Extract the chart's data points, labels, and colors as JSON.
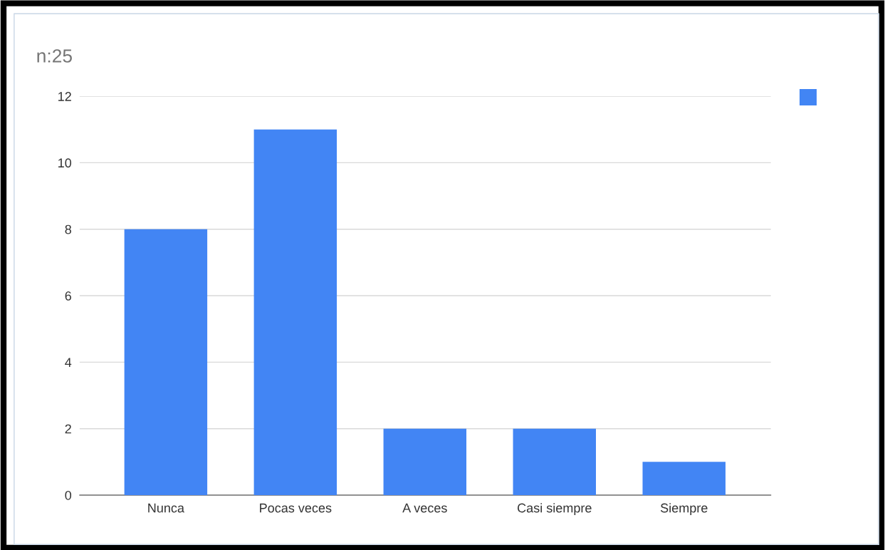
{
  "chart_data": {
    "type": "bar",
    "title": "n:25",
    "categories": [
      "Nunca",
      "Pocas veces",
      "A veces",
      "Casi siempre",
      "Siempre"
    ],
    "series": [
      {
        "color": "#4285f4",
        "values": [
          8,
          11,
          2,
          2,
          1
        ]
      }
    ],
    "ylim": [
      0,
      12
    ],
    "yticks": [
      0,
      2,
      4,
      6,
      8,
      10,
      12
    ],
    "grid": "y"
  }
}
